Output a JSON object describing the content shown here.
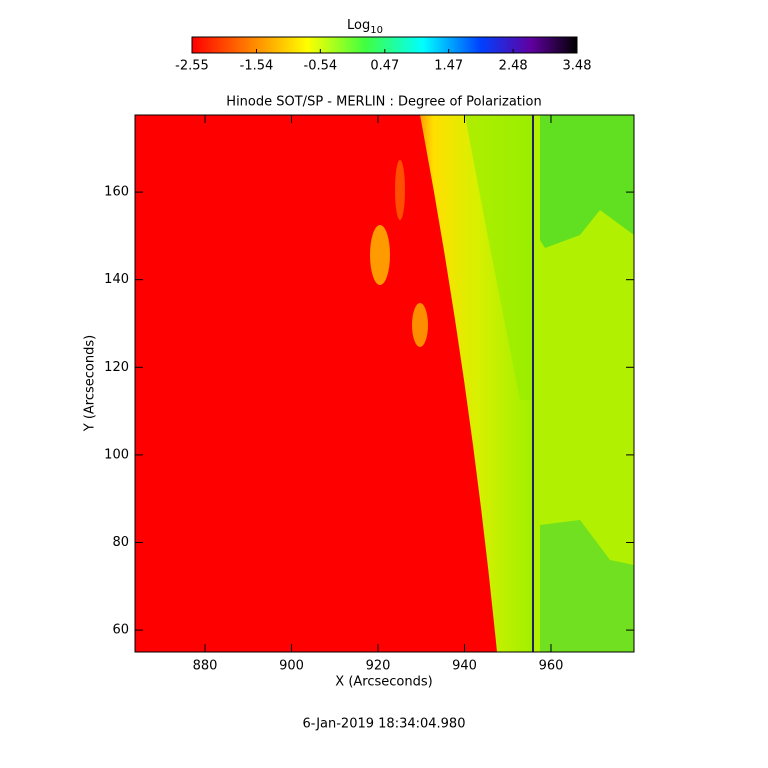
{
  "chart_data": {
    "type": "heatmap",
    "title": "Hinode SOT/SP - MERLIN : Degree of Polarization",
    "x_label": "X (Arcseconds)",
    "y_label": "Y (Arcseconds)",
    "colorbar_label": "Log",
    "colorbar_label_subscript": "10",
    "date": "6-Jan-2019 18:34:04.980",
    "xlim": [
      863.8,
      979.2
    ],
    "xticks": [
      880,
      900,
      920,
      940,
      960
    ],
    "ylim": [
      55.0,
      177.6
    ],
    "yticks": [
      60,
      80,
      100,
      120,
      140,
      160
    ],
    "clim": [
      -2.55,
      3.48
    ],
    "cticks": [
      -2.55,
      -1.54,
      -0.54,
      0.47,
      1.47,
      2.48,
      3.48
    ]
  }
}
